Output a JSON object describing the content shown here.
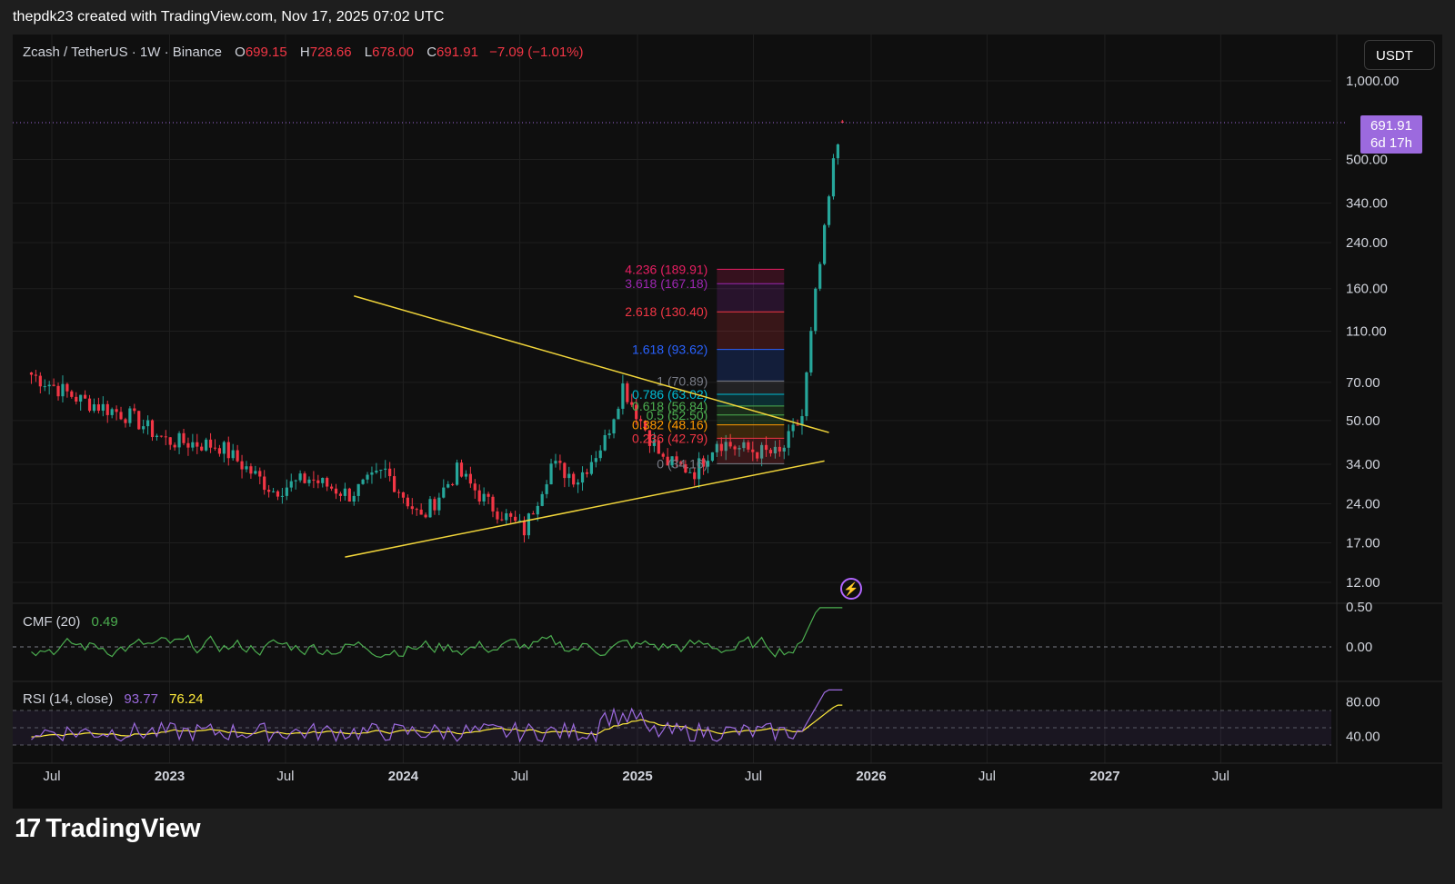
{
  "header": {
    "attribution": "thepdk23 created with TradingView.com, Nov 17, 2025 07:02 UTC"
  },
  "legend": {
    "symbol": "Zcash / TetherUS · 1W · Binance",
    "open_label": "O",
    "open": "699.15",
    "high_label": "H",
    "high": "728.66",
    "low_label": "L",
    "low": "678.00",
    "close_label": "C",
    "close": "691.91",
    "change": "−7.09 (−1.01%)"
  },
  "currency_button": "USDT",
  "price_tag": {
    "price": "691.91",
    "countdown": "6d 17h"
  },
  "indicators": {
    "cmf": {
      "name": "CMF (20)",
      "value": "0.49"
    },
    "rsi": {
      "name": "RSI (14, close)",
      "value": "93.77",
      "ma": "76.24"
    }
  },
  "brand": {
    "name": "TradingView"
  },
  "colors": {
    "background": "#0f0f0f",
    "up": "#26a69a",
    "down": "#f23645",
    "trendline": "#f0d43a",
    "cmf": "#4caf50",
    "rsi": "#9c6ade",
    "rsi_ma": "#ffeb3b",
    "price_tag": "#9c6ade"
  },
  "chart_data": [
    {
      "type": "candlestick",
      "title": "Zcash / TetherUS · 1W · Binance",
      "scale": "log",
      "y_ticks": [
        "1,000.00",
        "500.00",
        "340.00",
        "240.00",
        "160.00",
        "110.00",
        "70.00",
        "50.00",
        "34.00",
        "24.00",
        "17.00",
        "12.00"
      ],
      "y_tick_values": [
        1000,
        500,
        340,
        240,
        160,
        110,
        70,
        50,
        34,
        24,
        17,
        12
      ],
      "x_ticks": [
        "Jul",
        "2023",
        "Jul",
        "2024",
        "Jul",
        "2025",
        "Jul",
        "2026",
        "Jul",
        "2027",
        "Jul"
      ],
      "x_tick_dates": [
        "2022-07-01",
        "2023-01-01",
        "2023-07-01",
        "2024-01-01",
        "2024-07-01",
        "2025-01-01",
        "2025-07-01",
        "2026-01-01",
        "2026-07-01",
        "2027-01-01",
        "2027-07-01"
      ],
      "anchors": [
        {
          "date": "2022-05-30",
          "close": 75
        },
        {
          "date": "2022-08-15",
          "close": 60
        },
        {
          "date": "2022-10-31",
          "close": 52
        },
        {
          "date": "2022-12-26",
          "close": 42
        },
        {
          "date": "2023-03-20",
          "close": 40
        },
        {
          "date": "2023-06-12",
          "close": 27
        },
        {
          "date": "2023-08-07",
          "close": 30
        },
        {
          "date": "2023-10-09",
          "close": 26
        },
        {
          "date": "2023-12-04",
          "close": 32
        },
        {
          "date": "2024-01-29",
          "close": 21
        },
        {
          "date": "2024-03-25",
          "close": 32
        },
        {
          "date": "2024-05-13",
          "close": 24
        },
        {
          "date": "2024-07-08",
          "close": 19
        },
        {
          "date": "2024-08-19",
          "close": 34
        },
        {
          "date": "2024-09-30",
          "close": 30
        },
        {
          "date": "2024-11-11",
          "close": 42
        },
        {
          "date": "2024-12-09",
          "close": 68
        },
        {
          "date": "2025-01-06",
          "close": 50
        },
        {
          "date": "2025-02-10",
          "close": 35
        },
        {
          "date": "2025-03-31",
          "close": 32
        },
        {
          "date": "2025-05-05",
          "close": 42
        },
        {
          "date": "2025-06-09",
          "close": 39
        },
        {
          "date": "2025-08-11",
          "close": 37
        },
        {
          "date": "2025-09-15",
          "close": 52
        },
        {
          "date": "2025-10-06",
          "close": 150
        },
        {
          "date": "2025-10-20",
          "close": 260
        },
        {
          "date": "2025-11-03",
          "close": 480
        },
        {
          "date": "2025-11-17",
          "close": 691.91
        }
      ],
      "last_price": 691.91,
      "trendlines": [
        {
          "from": {
            "date": "2023-10-16",
            "price": 150
          },
          "to": {
            "date": "2025-10-27",
            "price": 45
          }
        },
        {
          "from": {
            "date": "2023-10-02",
            "price": 15
          },
          "to": {
            "date": "2025-10-20",
            "price": 35
          }
        }
      ],
      "fibonacci": {
        "levels": [
          {
            "label": "4.236 (189.91)",
            "price": 189.91,
            "color": "#e91e63"
          },
          {
            "label": "3.618 (167.18)",
            "price": 167.18,
            "color": "#9c27b0"
          },
          {
            "label": "2.618 (130.40)",
            "price": 130.4,
            "color": "#f23645"
          },
          {
            "label": "1.618 (93.62)",
            "price": 93.62,
            "color": "#2962ff"
          },
          {
            "label": "1 (70.89)",
            "price": 70.89,
            "color": "#787b86"
          },
          {
            "label": "0.786 (63.02)",
            "price": 63.02,
            "color": "#00bcd4"
          },
          {
            "label": "0.618 (56.84)",
            "price": 56.84,
            "color": "#4caf50"
          },
          {
            "label": "0.5 (52.50)",
            "price": 52.5,
            "color": "#4caf50"
          },
          {
            "label": "0.382 (48.16)",
            "price": 48.16,
            "color": "#ff9800"
          },
          {
            "label": "0.236 (42.79)",
            "price": 42.79,
            "color": "#f23645"
          },
          {
            "label": "0 (34.16)",
            "price": 34.16,
            "color": "#787b86"
          }
        ],
        "from_date": "2025-05-05",
        "to_date": "2025-08-18"
      }
    },
    {
      "type": "line",
      "title": "CMF (20)",
      "y_ticks": [
        "0.50",
        "0.00"
      ],
      "y_tick_values": [
        0.5,
        0
      ],
      "series": [
        {
          "name": "CMF (20)",
          "last": 0.49
        }
      ]
    },
    {
      "type": "line",
      "title": "RSI (14, close)",
      "y_ticks": [
        "80.00",
        "40.00"
      ],
      "y_tick_values": [
        80,
        40
      ],
      "series": [
        {
          "name": "RSI",
          "last": 93.77
        },
        {
          "name": "RSI-MA",
          "last": 76.24
        }
      ]
    }
  ]
}
